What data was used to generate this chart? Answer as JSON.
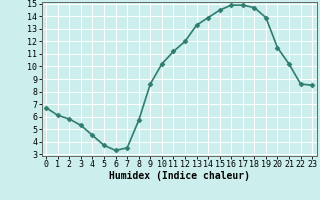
{
  "x": [
    0,
    1,
    2,
    3,
    4,
    5,
    6,
    7,
    8,
    9,
    10,
    11,
    12,
    13,
    14,
    15,
    16,
    17,
    18,
    19,
    20,
    21,
    22,
    23
  ],
  "y": [
    6.7,
    6.1,
    5.8,
    5.3,
    4.5,
    3.7,
    3.3,
    3.5,
    5.7,
    8.6,
    10.2,
    11.2,
    12.0,
    13.3,
    13.9,
    14.5,
    14.9,
    14.9,
    14.7,
    13.9,
    11.5,
    10.2,
    8.6,
    8.5
  ],
  "line_color": "#2e7d6e",
  "marker": "D",
  "marker_size": 2.5,
  "bg_color": "#cceeed",
  "grid_color": "#ffffff",
  "xlabel": "Humidex (Indice chaleur)",
  "ylim_min": 3,
  "ylim_max": 15,
  "xlim_min": 0,
  "xlim_max": 23,
  "yticks": [
    3,
    4,
    5,
    6,
    7,
    8,
    9,
    10,
    11,
    12,
    13,
    14,
    15
  ],
  "xticks": [
    0,
    1,
    2,
    3,
    4,
    5,
    6,
    7,
    8,
    9,
    10,
    11,
    12,
    13,
    14,
    15,
    16,
    17,
    18,
    19,
    20,
    21,
    22,
    23
  ],
  "tick_fontsize": 6,
  "xlabel_fontsize": 7,
  "linewidth": 1.2,
  "spine_color": "#666666",
  "bottom_bar_color": "#5a8a7a"
}
